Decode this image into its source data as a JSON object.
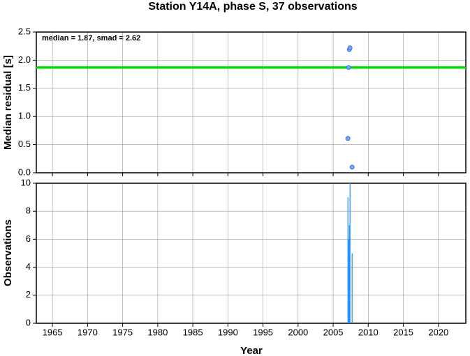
{
  "chart_data": [
    {
      "type": "scatter",
      "title": "Station Y14A, phase S, 37 observations",
      "y_label": "Median residual [s]",
      "annotation": "median = 1.87, smad = 2.62",
      "median": 1.87,
      "median_color": "#00e000",
      "x": [
        2007.1,
        2007.2,
        2007.3,
        2007.4,
        2007.7
      ],
      "values": [
        0.61,
        1.87,
        2.19,
        2.22,
        0.1
      ],
      "color": "#6fa8ff",
      "xlim": [
        1962.7,
        2023.9
      ],
      "xticks": [
        1965,
        1970,
        1975,
        1980,
        1985,
        1990,
        1995,
        2000,
        2005,
        2010,
        2015,
        2020
      ],
      "ylim": [
        0,
        2.5
      ],
      "yticks": [
        {
          "value": 0,
          "label": "0.0"
        },
        {
          "value": 0.5,
          "label": "0.5"
        },
        {
          "value": 1,
          "label": "1.0"
        },
        {
          "value": 1.5,
          "label": "1.5"
        },
        {
          "value": 2,
          "label": "2.0"
        },
        {
          "value": 2.5,
          "label": "2.5"
        }
      ],
      "grid": true
    },
    {
      "type": "bar",
      "x_label": "Year",
      "y_label": "Observations",
      "x": [
        2007.1,
        2007.2,
        2007.3,
        2007.4,
        2007.7
      ],
      "values": [
        9,
        6,
        7,
        10,
        5
      ],
      "color": "#1e8fff",
      "xlim": [
        1962.7,
        2023.9
      ],
      "xticks": [
        1965,
        1970,
        1975,
        1980,
        1985,
        1990,
        1995,
        2000,
        2005,
        2010,
        2015,
        2020
      ],
      "ylim": [
        0,
        10
      ],
      "yticks": [
        0,
        2,
        4,
        6,
        8,
        10
      ],
      "grid": true
    }
  ]
}
